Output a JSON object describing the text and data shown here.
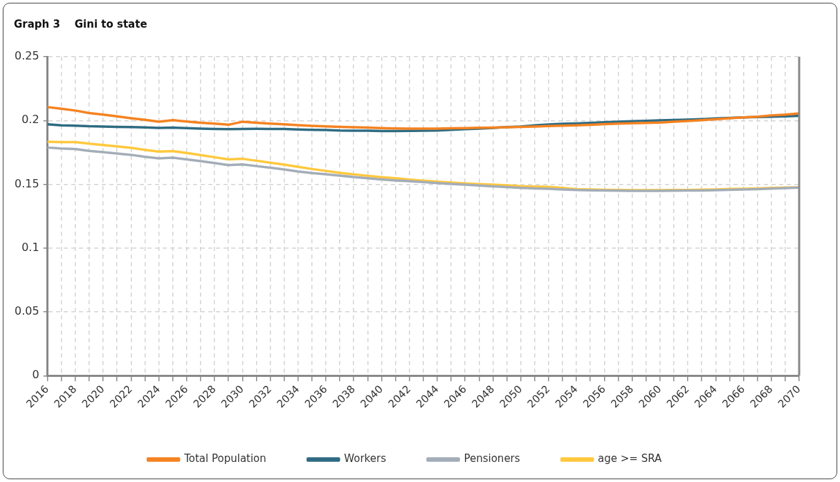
{
  "chart_data": {
    "type": "line",
    "title": "Graph 3    Gini to state",
    "categories": [
      "2016",
      null,
      "2018",
      null,
      "2020",
      null,
      "2022",
      null,
      "2024",
      null,
      "2026",
      null,
      "2028",
      null,
      "2030",
      null,
      "2032",
      null,
      "2034",
      null,
      "2036",
      null,
      "2038",
      null,
      "2040",
      null,
      "2042",
      null,
      "2044",
      null,
      "2046",
      null,
      "2048",
      null,
      "2050",
      null,
      "2052",
      null,
      "2054",
      null,
      "2056",
      null,
      "2058",
      null,
      "2060",
      null,
      "2062",
      null,
      "2064",
      null,
      "2066",
      null,
      "2068",
      null,
      "2070"
    ],
    "series": [
      {
        "name": "Total Population",
        "color": "#f58220",
        "values": [
          0.2105,
          0.2092,
          0.2078,
          0.2058,
          0.2046,
          0.2033,
          0.2018,
          0.2005,
          0.199,
          0.2003,
          0.1992,
          0.1982,
          0.1975,
          0.1967,
          0.199,
          0.1982,
          0.1975,
          0.197,
          0.1963,
          0.1958,
          0.1954,
          0.195,
          0.1947,
          0.1944,
          0.1941,
          0.1938,
          0.1936,
          0.1936,
          0.1937,
          0.1939,
          0.1941,
          0.1943,
          0.1945,
          0.1947,
          0.195,
          0.1953,
          0.1956,
          0.1959,
          0.1962,
          0.1966,
          0.1971,
          0.1975,
          0.1978,
          0.1981,
          0.1984,
          0.199,
          0.1996,
          0.2003,
          0.201,
          0.2017,
          0.2024,
          0.203,
          0.204,
          0.2046,
          0.2055
        ]
      },
      {
        "name": "Workers",
        "color": "#2e6b82",
        "values": [
          0.197,
          0.1962,
          0.196,
          0.1955,
          0.1953,
          0.195,
          0.1948,
          0.1946,
          0.1942,
          0.1944,
          0.194,
          0.1936,
          0.1934,
          0.1932,
          0.1934,
          0.1935,
          0.1934,
          0.1934,
          0.193,
          0.1927,
          0.1925,
          0.1921,
          0.192,
          0.192,
          0.1918,
          0.1918,
          0.1919,
          0.192,
          0.1922,
          0.1927,
          0.1932,
          0.1937,
          0.1942,
          0.1948,
          0.1953,
          0.1962,
          0.1969,
          0.1974,
          0.1977,
          0.1981,
          0.1986,
          0.1991,
          0.1995,
          0.1998,
          0.2001,
          0.2004,
          0.2007,
          0.2011,
          0.2016,
          0.202,
          0.2024,
          0.2027,
          0.203,
          0.2033,
          0.2037
        ]
      },
      {
        "name": "Pensioners",
        "color": "#a3adb8",
        "values": [
          0.1788,
          0.178,
          0.1777,
          0.1762,
          0.1752,
          0.1741,
          0.1731,
          0.1716,
          0.1703,
          0.1709,
          0.1695,
          0.1682,
          0.1667,
          0.1651,
          0.1656,
          0.1643,
          0.163,
          0.1616,
          0.16,
          0.1588,
          0.1579,
          0.1568,
          0.1557,
          0.1547,
          0.1538,
          0.153,
          0.1524,
          0.1517,
          0.151,
          0.1503,
          0.1497,
          0.149,
          0.1484,
          0.1478,
          0.1472,
          0.1468,
          0.1465,
          0.146,
          0.1455,
          0.1453,
          0.1451,
          0.145,
          0.1449,
          0.1449,
          0.1449,
          0.145,
          0.1451,
          0.1451,
          0.1454,
          0.1457,
          0.1459,
          0.1462,
          0.1466,
          0.147,
          0.1474
        ]
      },
      {
        "name": "age >= SRA",
        "color": "#ffc83d",
        "values": [
          0.1833,
          0.183,
          0.1831,
          0.1818,
          0.1808,
          0.1797,
          0.1786,
          0.177,
          0.1756,
          0.176,
          0.1745,
          0.1729,
          0.1712,
          0.1695,
          0.17,
          0.1685,
          0.167,
          0.1654,
          0.1637,
          0.162,
          0.1605,
          0.159,
          0.1578,
          0.1567,
          0.1556,
          0.1547,
          0.1537,
          0.1528,
          0.152,
          0.1513,
          0.1507,
          0.1501,
          0.1497,
          0.1492,
          0.1485,
          0.1483,
          0.148,
          0.1472,
          0.1462,
          0.1459,
          0.1457,
          0.1455,
          0.1454,
          0.1454,
          0.1454,
          0.1455,
          0.1456,
          0.1458,
          0.146,
          0.1463,
          0.1465,
          0.1468,
          0.1471,
          0.1474,
          0.1476
        ]
      }
    ],
    "ylim": [
      0,
      0.25
    ],
    "yticks": [
      0,
      0.05,
      0.1,
      0.15,
      0.2,
      0.25
    ],
    "grid": true,
    "legend": "bottom",
    "marker": "none",
    "line_style": "solid"
  }
}
